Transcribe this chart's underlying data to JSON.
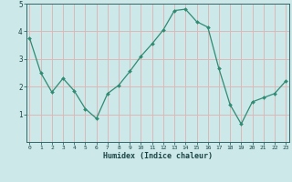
{
  "x": [
    0,
    1,
    2,
    3,
    4,
    5,
    6,
    7,
    8,
    9,
    10,
    11,
    12,
    13,
    14,
    15,
    16,
    17,
    18,
    19,
    20,
    21,
    22,
    23
  ],
  "y": [
    3.75,
    2.5,
    1.8,
    2.3,
    1.85,
    1.2,
    0.85,
    1.75,
    2.05,
    2.55,
    3.1,
    3.55,
    4.05,
    4.75,
    4.8,
    4.35,
    4.15,
    2.65,
    1.35,
    0.65,
    1.45,
    1.6,
    1.75,
    2.2
  ],
  "xlabel": "Humidex (Indice chaleur)",
  "ylim": [
    0,
    5
  ],
  "xlim": [
    -0.3,
    23.3
  ],
  "yticks": [
    1,
    2,
    3,
    4,
    5
  ],
  "xticks": [
    0,
    1,
    2,
    3,
    4,
    5,
    6,
    7,
    8,
    9,
    10,
    11,
    12,
    13,
    14,
    15,
    16,
    17,
    18,
    19,
    20,
    21,
    22,
    23
  ],
  "line_color": "#2e8b74",
  "marker_color": "#2e8b74",
  "bg_color": "#cce8e8",
  "grid_color": "#ddb8b8",
  "axis_color": "#336666",
  "tick_label_color": "#1a4444",
  "xlabel_color": "#1a4444"
}
